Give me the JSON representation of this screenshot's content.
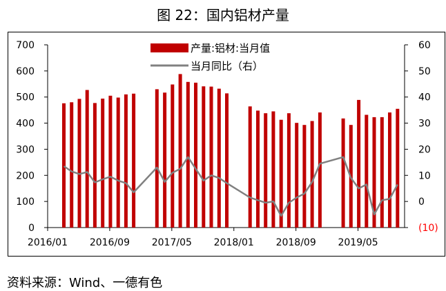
{
  "figure": {
    "title": "图 22：国内铝材产量",
    "source": "资料来源：Wind、一德有色"
  },
  "chart_data": {
    "type": "bar",
    "left_axis": {
      "min": 0,
      "max": 700,
      "ticks": [
        "0",
        "100",
        "200",
        "300",
        "400",
        "500",
        "600",
        "700"
      ]
    },
    "right_axis": {
      "min": -10,
      "max": 60,
      "ticks": [
        "(10)",
        "0",
        "10",
        "20",
        "30",
        "40",
        "50",
        "60"
      ],
      "negative_color": "#ff0000"
    },
    "x_tick_labels": [
      "2016/01",
      "2016/09",
      "2017/05",
      "2018/01",
      "2018/09",
      "2019/05"
    ],
    "x_tick_months": [
      0,
      8,
      16,
      24,
      32,
      40
    ],
    "legend": {
      "position": "top-center"
    },
    "series": [
      {
        "name": "产量:铝材:当月值",
        "type": "bar",
        "axis": "left",
        "color": "#c00000",
        "points": [
          {
            "m": 2,
            "v": 476
          },
          {
            "m": 3,
            "v": 480
          },
          {
            "m": 4,
            "v": 493
          },
          {
            "m": 5,
            "v": 527
          },
          {
            "m": 6,
            "v": 477
          },
          {
            "m": 7,
            "v": 494
          },
          {
            "m": 8,
            "v": 505
          },
          {
            "m": 9,
            "v": 498
          },
          {
            "m": 10,
            "v": 510
          },
          {
            "m": 11,
            "v": 513
          },
          {
            "m": 14,
            "v": 530
          },
          {
            "m": 15,
            "v": 517
          },
          {
            "m": 16,
            "v": 548
          },
          {
            "m": 17,
            "v": 588
          },
          {
            "m": 18,
            "v": 558
          },
          {
            "m": 19,
            "v": 555
          },
          {
            "m": 20,
            "v": 541
          },
          {
            "m": 21,
            "v": 540
          },
          {
            "m": 22,
            "v": 532
          },
          {
            "m": 23,
            "v": 514
          },
          {
            "m": 26,
            "v": 464
          },
          {
            "m": 27,
            "v": 448
          },
          {
            "m": 28,
            "v": 438
          },
          {
            "m": 29,
            "v": 445
          },
          {
            "m": 30,
            "v": 413
          },
          {
            "m": 31,
            "v": 438
          },
          {
            "m": 32,
            "v": 401
          },
          {
            "m": 33,
            "v": 393
          },
          {
            "m": 34,
            "v": 408
          },
          {
            "m": 35,
            "v": 441
          },
          {
            "m": 38,
            "v": 418
          },
          {
            "m": 39,
            "v": 393
          },
          {
            "m": 40,
            "v": 489
          },
          {
            "m": 41,
            "v": 432
          },
          {
            "m": 42,
            "v": 423
          },
          {
            "m": 43,
            "v": 423
          },
          {
            "m": 44,
            "v": 441
          },
          {
            "m": 45,
            "v": 455
          }
        ]
      },
      {
        "name": "当月同比（右）",
        "type": "line",
        "axis": "right",
        "color": "#808080",
        "points": [
          {
            "m": 2,
            "v": 13.5
          },
          {
            "m": 3,
            "v": 11.5
          },
          {
            "m": 4,
            "v": 10.5
          },
          {
            "m": 5,
            "v": 11.3
          },
          {
            "m": 6,
            "v": 7.3
          },
          {
            "m": 7,
            "v": 8.5
          },
          {
            "m": 8,
            "v": 9.5
          },
          {
            "m": 9,
            "v": 8.0
          },
          {
            "m": 10,
            "v": 7.0
          },
          {
            "m": 11,
            "v": 3.5
          },
          {
            "m": 14,
            "v": 13.0
          },
          {
            "m": 15,
            "v": 7.5
          },
          {
            "m": 16,
            "v": 11.0
          },
          {
            "m": 17,
            "v": 12.5
          },
          {
            "m": 18,
            "v": 17.0
          },
          {
            "m": 19,
            "v": 12.5
          },
          {
            "m": 20,
            "v": 8.0
          },
          {
            "m": 21,
            "v": 10.0
          },
          {
            "m": 22,
            "v": 9.0
          },
          {
            "m": 23,
            "v": 7.0
          },
          {
            "m": 26,
            "v": 1.5
          },
          {
            "m": 27,
            "v": 0.5
          },
          {
            "m": 28,
            "v": -0.5
          },
          {
            "m": 29,
            "v": 0
          },
          {
            "m": 30,
            "v": -5.5
          },
          {
            "m": 31,
            "v": -0.5
          },
          {
            "m": 32,
            "v": 1.5
          },
          {
            "m": 33,
            "v": 3.0
          },
          {
            "m": 34,
            "v": 7.5
          },
          {
            "m": 35,
            "v": 14.5
          },
          {
            "m": 38,
            "v": 17.0
          },
          {
            "m": 39,
            "v": 9.0
          },
          {
            "m": 40,
            "v": 5.0
          },
          {
            "m": 41,
            "v": 6.5
          },
          {
            "m": 42,
            "v": -5.0
          },
          {
            "m": 43,
            "v": 0.5
          },
          {
            "m": 44,
            "v": 1.0
          },
          {
            "m": 45,
            "v": 6.5
          }
        ]
      }
    ]
  }
}
